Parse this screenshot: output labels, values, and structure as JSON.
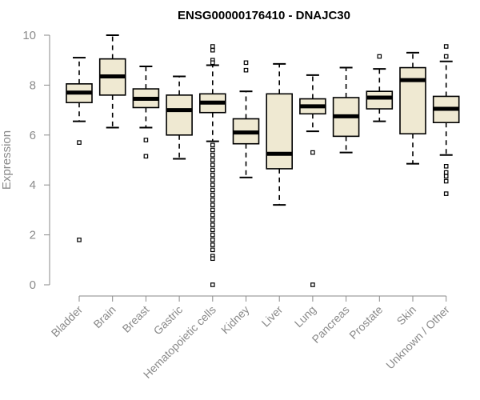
{
  "chart_data": {
    "type": "boxplot",
    "title": "ENSG00000176410 - DNAJC30",
    "xlabel": "",
    "ylabel": "Expression",
    "ylim": [
      0,
      10
    ],
    "yticks": [
      0,
      2,
      4,
      6,
      8,
      10
    ],
    "box_fill": "#efe9d2",
    "line_color": "#000000",
    "axis_color": "#8a8a8a",
    "categories": [
      "Bladder",
      "Brain",
      "Breast",
      "Gastric",
      "Hematopoietic cells",
      "Kidney",
      "Liver",
      "Lung",
      "Pancreas",
      "Prostate",
      "Skin",
      "Unknown / Other"
    ],
    "boxes": [
      {
        "whisker_low": 6.55,
        "q1": 7.3,
        "median": 7.7,
        "q3": 8.05,
        "whisker_high": 9.1,
        "outliers": [
          5.7,
          1.8
        ]
      },
      {
        "whisker_low": 6.3,
        "q1": 7.6,
        "median": 8.35,
        "q3": 9.05,
        "whisker_high": 10.0,
        "outliers": []
      },
      {
        "whisker_low": 6.3,
        "q1": 7.1,
        "median": 7.45,
        "q3": 7.85,
        "whisker_high": 8.75,
        "outliers": [
          5.8,
          5.15
        ]
      },
      {
        "whisker_low": 5.05,
        "q1": 6.0,
        "median": 7.0,
        "q3": 7.6,
        "whisker_high": 8.35,
        "outliers": []
      },
      {
        "whisker_low": 5.75,
        "q1": 6.9,
        "median": 7.3,
        "q3": 7.65,
        "whisker_high": 8.8,
        "outliers": [
          9.55,
          9.4,
          9.0,
          8.9,
          5.6,
          5.4,
          5.2,
          5.0,
          4.8,
          4.6,
          4.4,
          4.2,
          4.0,
          3.8,
          3.6,
          3.4,
          3.2,
          3.0,
          2.8,
          2.6,
          2.4,
          2.2,
          2.0,
          1.8,
          1.6,
          1.4,
          1.15,
          1.05,
          0.0
        ]
      },
      {
        "whisker_low": 4.3,
        "q1": 5.65,
        "median": 6.1,
        "q3": 6.65,
        "whisker_high": 7.75,
        "outliers": [
          8.9,
          8.6
        ]
      },
      {
        "whisker_low": 3.2,
        "q1": 4.65,
        "median": 5.25,
        "q3": 7.65,
        "whisker_high": 8.85,
        "outliers": []
      },
      {
        "whisker_low": 6.15,
        "q1": 6.85,
        "median": 7.15,
        "q3": 7.45,
        "whisker_high": 8.4,
        "outliers": [
          5.3,
          0.0
        ]
      },
      {
        "whisker_low": 5.3,
        "q1": 5.95,
        "median": 6.75,
        "q3": 7.5,
        "whisker_high": 8.7,
        "outliers": []
      },
      {
        "whisker_low": 6.55,
        "q1": 7.05,
        "median": 7.5,
        "q3": 7.75,
        "whisker_high": 8.65,
        "outliers": [
          9.15
        ]
      },
      {
        "whisker_low": 4.85,
        "q1": 6.05,
        "median": 8.2,
        "q3": 8.7,
        "whisker_high": 9.3,
        "outliers": []
      },
      {
        "whisker_low": 5.2,
        "q1": 6.5,
        "median": 7.05,
        "q3": 7.55,
        "whisker_high": 8.95,
        "outliers": [
          9.55,
          9.15,
          4.75,
          4.5,
          4.35,
          4.15,
          3.65
        ]
      }
    ]
  }
}
